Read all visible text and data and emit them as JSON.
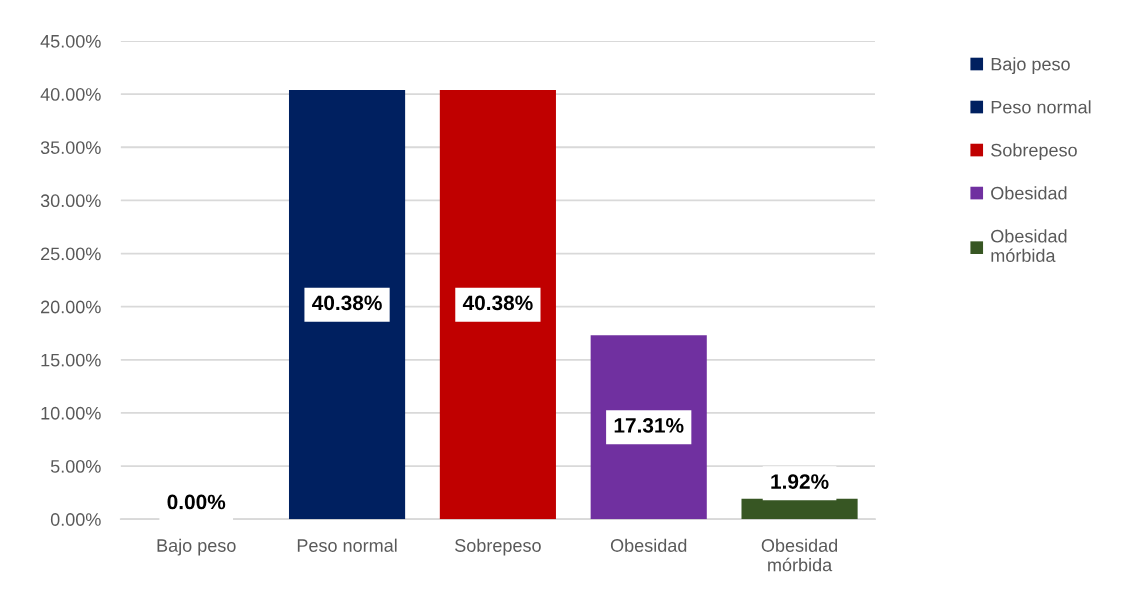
{
  "chart_data": {
    "type": "bar",
    "categories": [
      "Bajo peso",
      "Peso normal",
      "Sobrepeso",
      "Obesidad",
      "Obesidad mórbida"
    ],
    "series": [
      {
        "name": "Bajo peso",
        "color": "#002060",
        "values": [
          0,
          null,
          null,
          null,
          null
        ],
        "value_labels": [
          "0.00%",
          null,
          null,
          null,
          null
        ]
      },
      {
        "name": "Peso normal",
        "color": "#002060",
        "values": [
          null,
          40.38,
          null,
          null,
          null
        ],
        "value_labels": [
          null,
          "40.38%",
          null,
          null,
          null
        ]
      },
      {
        "name": "Sobrepeso",
        "color": "#c00000",
        "values": [
          null,
          null,
          40.38,
          null,
          null
        ],
        "value_labels": [
          null,
          null,
          "40.38%",
          null,
          null
        ]
      },
      {
        "name": "Obesidad",
        "color": "#7030a0",
        "values": [
          null,
          null,
          null,
          17.31,
          null
        ],
        "value_labels": [
          null,
          null,
          null,
          "17.31%",
          null
        ]
      },
      {
        "name": "Obesidad mórbida",
        "color": "#375623",
        "values": [
          null,
          null,
          null,
          null,
          1.92
        ],
        "value_labels": [
          null,
          null,
          null,
          null,
          "1.92%"
        ]
      }
    ],
    "ylim": [
      0,
      45
    ],
    "yticks": [
      {
        "value": 0,
        "label": "0.00%"
      },
      {
        "value": 5,
        "label": "5.00%"
      },
      {
        "value": 10,
        "label": "10.00%"
      },
      {
        "value": 15,
        "label": "15.00%"
      },
      {
        "value": 20,
        "label": "20.00%"
      },
      {
        "value": 25,
        "label": "25.00%"
      },
      {
        "value": 30,
        "label": "30.00%"
      },
      {
        "value": 35,
        "label": "35.00%"
      },
      {
        "value": 40,
        "label": "40.00%"
      },
      {
        "value": 45,
        "label": "45.00%"
      }
    ],
    "grid": "y",
    "legend": "right"
  }
}
